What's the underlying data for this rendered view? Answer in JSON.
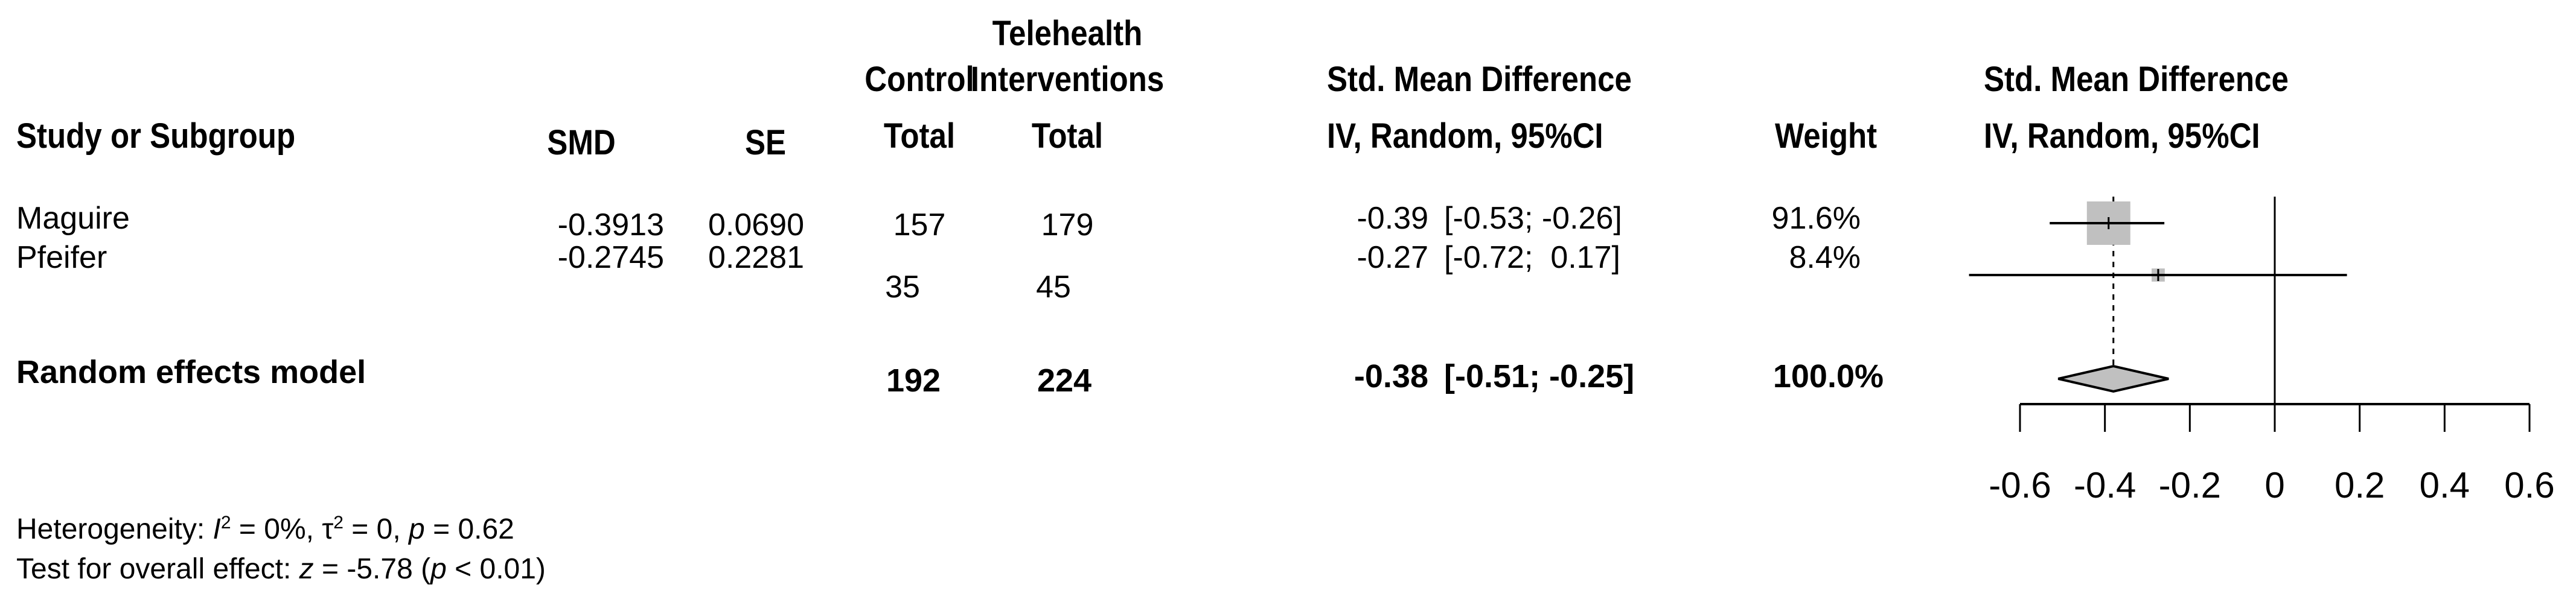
{
  "headers": {
    "study": "Study or Subgroup",
    "smd": "SMD",
    "se": "SE",
    "control_top": "Control",
    "control_bottom": "Total",
    "tele_top1": "Telehealth",
    "tele_top2": "Interventions",
    "tele_bottom": "Total",
    "effect_top": "Std. Mean Difference",
    "effect_bottom": "IV, Random, 95%CI",
    "weight": "Weight",
    "plot_top": "Std. Mean Difference",
    "plot_bottom": "IV, Random, 95%CI"
  },
  "rows": [
    {
      "study": "Maguire",
      "smd": "-0.3913",
      "se": "0.0690",
      "control": "157",
      "tele": "179",
      "est": "-0.39",
      "ci": "[-0.53; -0.26]",
      "weight": "91.6%"
    },
    {
      "study": "Pfeifer",
      "smd": "-0.2745",
      "se": "0.2281",
      "control": "35",
      "tele": "45",
      "est": "-0.27",
      "ci": "[-0.72;  0.17]",
      "weight": "8.4%"
    }
  ],
  "pooled": {
    "label": "Random effects model",
    "control": "192",
    "tele": "224",
    "est": "-0.38",
    "ci": "[-0.51; -0.25]",
    "weight": "100.0%"
  },
  "footer": {
    "heterogeneity_prefix": "Heterogeneity: ",
    "i2": "I",
    "i2_rest": " = 0%, ",
    "tau": "τ",
    "tau_rest": " = 0, ",
    "p": "p",
    "p_rest": " = 0.62",
    "test_prefix": "Test for overall effect: ",
    "z": "z",
    "z_rest": " = -5.78 (",
    "p2": "p",
    "p2_rest": " < 0.01)"
  },
  "chart_data": {
    "type": "forest",
    "xlim": [
      -0.6,
      0.6
    ],
    "ticks": [
      "-0.6",
      "-0.4",
      "-0.2",
      "0",
      "0.2",
      "0.4",
      "0.6"
    ],
    "tick_values": [
      -0.6,
      -0.4,
      -0.2,
      0,
      0.2,
      0.4,
      0.6
    ],
    "studies": [
      {
        "name": "Maguire",
        "est": -0.3913,
        "lower": -0.53,
        "upper": -0.26,
        "weight": 91.6
      },
      {
        "name": "Pfeifer",
        "est": -0.2745,
        "lower": -0.72,
        "upper": 0.17,
        "weight": 8.4
      }
    ],
    "pooled": {
      "est": -0.38,
      "lower": -0.51,
      "upper": -0.25
    },
    "colors": {
      "box": "#c0c0c0",
      "diamond": "#c0c0c0",
      "line": "#000000"
    }
  }
}
